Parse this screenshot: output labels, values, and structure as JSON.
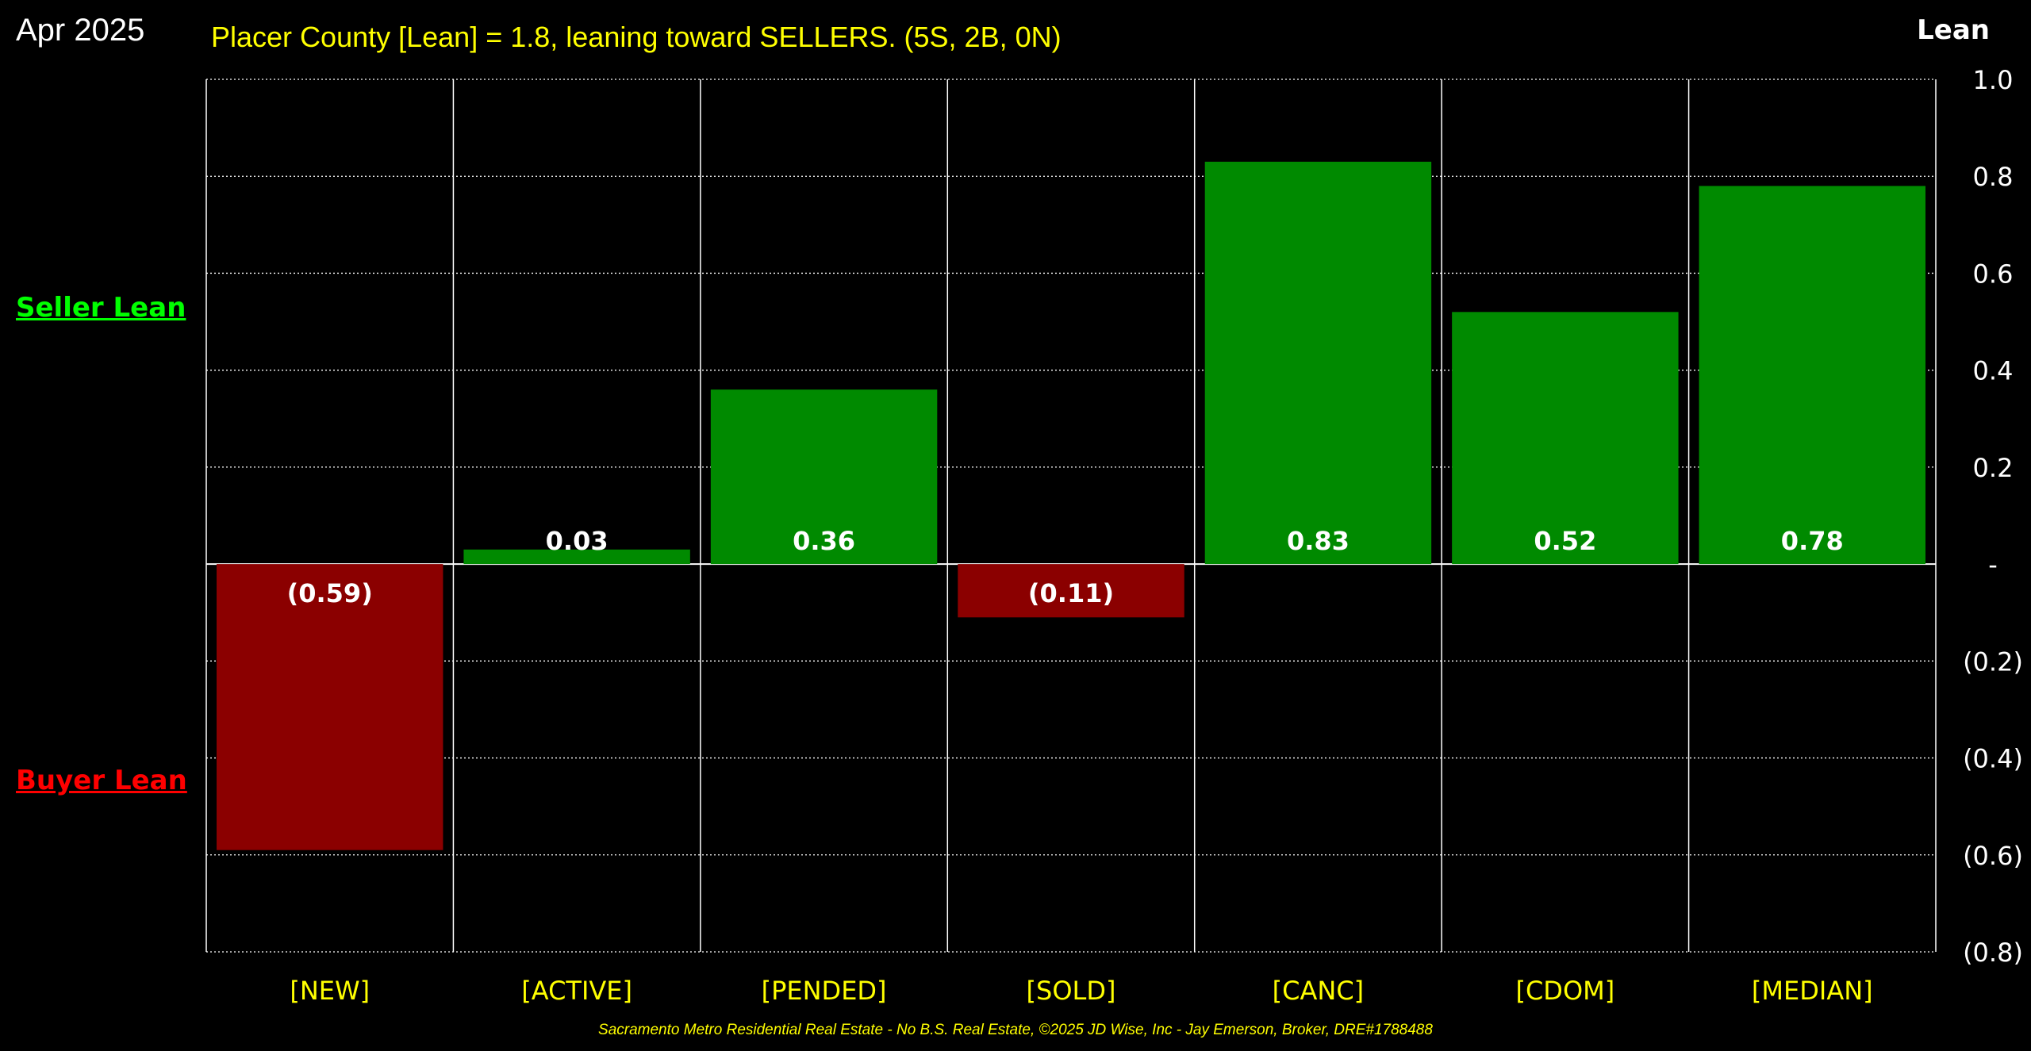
{
  "header": {
    "date": "Apr 2025",
    "title": "Placer County [Lean] = 1.8, leaning toward SELLERS. (5S, 2B, 0N)",
    "axis_title": "Lean"
  },
  "side_labels": {
    "seller": "Seller Lean",
    "buyer": "Buyer Lean"
  },
  "footer": "Sacramento Metro Residential Real Estate - No B.S. Real Estate, ©2025 JD Wise, Inc - Jay Emerson, Broker, DRE#1788488",
  "colors": {
    "background": "#000000",
    "positive_bar": "#008a00",
    "negative_bar": "#8b0000",
    "category_text": "#ffff00",
    "grid": "#ffffff"
  },
  "chart_data": {
    "type": "bar",
    "categories": [
      "[NEW]",
      "[ACTIVE]",
      "[PENDED]",
      "[SOLD]",
      "[CANC]",
      "[CDOM]",
      "[MEDIAN]"
    ],
    "values": [
      -0.59,
      0.03,
      0.36,
      -0.11,
      0.83,
      0.52,
      0.78
    ],
    "data_labels": [
      "(0.59)",
      "0.03",
      "0.36",
      "(0.11)",
      "0.83",
      "0.52",
      "0.78"
    ],
    "ylim": [
      -0.8,
      1.0
    ],
    "y_ticks": [
      1.0,
      0.8,
      0.6,
      0.4,
      0.2,
      0,
      -0.2,
      -0.4,
      -0.6,
      -0.8
    ],
    "y_tick_labels": [
      "1.0",
      "0.8",
      "0.6",
      "0.4",
      "0.2",
      "-",
      "(0.2)",
      "(0.4)",
      "(0.6)",
      "(0.8)"
    ],
    "ylabel": "Lean",
    "grid": true,
    "y_axis_position": "right"
  }
}
